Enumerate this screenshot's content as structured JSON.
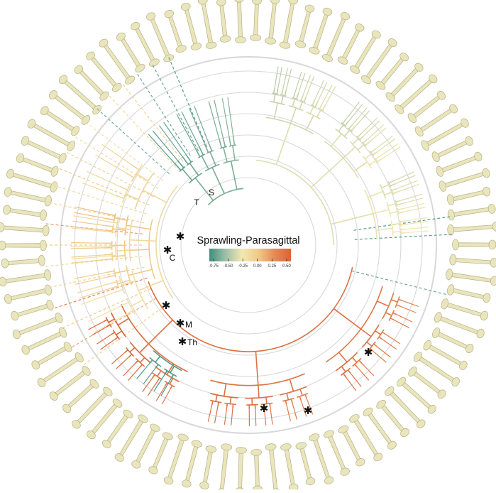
{
  "legend": {
    "title": "Sprawling-Parasagittal",
    "ticks": [
      "-0.75",
      "-0.50",
      "-0.25",
      "0.00",
      "0.25",
      "0.50"
    ],
    "colors": [
      "#3f8f7f",
      "#9fbfa6",
      "#f2e8b2",
      "#f0c98a",
      "#e48a57",
      "#d9643a"
    ]
  },
  "clade_labels": {
    "t": "T",
    "s": "S",
    "c": "C",
    "m": "M",
    "th": "Th"
  },
  "marker_symbol": "✱",
  "colors": {
    "ring": "#d8d8d8",
    "bone": "#e9e5bc",
    "bone_shadow": "#b8b184",
    "teal": "#3c8c7c",
    "orange": "#dc6a3c"
  }
}
